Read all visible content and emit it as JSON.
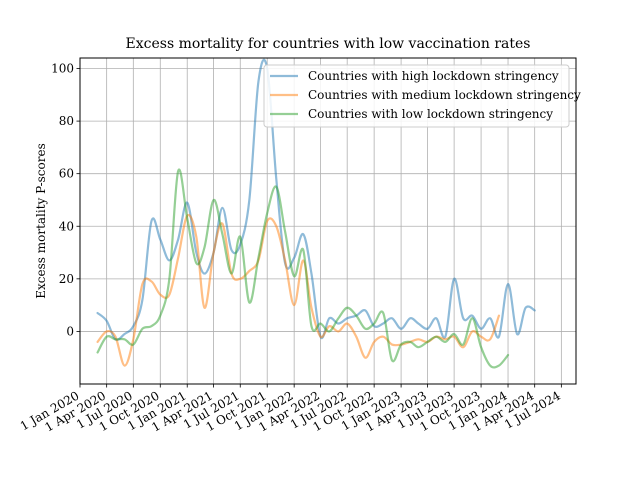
{
  "chart_data": {
    "type": "line",
    "title": "Excess mortality for countries with low vaccination rates",
    "xlabel": "",
    "ylabel": "Excess mortality P-scores",
    "ylim": [
      -20,
      104
    ],
    "xlim": [
      "2020-01-01",
      "2024-08-20"
    ],
    "grid": true,
    "legend_position": "top-right",
    "y_ticks": [
      0,
      20,
      40,
      60,
      80,
      100
    ],
    "x_ticks": [
      {
        "date": "2020-01-01",
        "label": "1 Jan 2020"
      },
      {
        "date": "2020-04-01",
        "label": "1 Apr 2020"
      },
      {
        "date": "2020-07-01",
        "label": "1 Jul 2020"
      },
      {
        "date": "2020-10-01",
        "label": "1 Oct 2020"
      },
      {
        "date": "2021-01-01",
        "label": "1 Jan 2021"
      },
      {
        "date": "2021-04-01",
        "label": "1 Apr 2021"
      },
      {
        "date": "2021-07-01",
        "label": "1 Jul 2021"
      },
      {
        "date": "2021-10-01",
        "label": "1 Oct 2021"
      },
      {
        "date": "2022-01-01",
        "label": "1 Jan 2022"
      },
      {
        "date": "2022-04-01",
        "label": "1 Apr 2022"
      },
      {
        "date": "2022-07-01",
        "label": "1 Jul 2022"
      },
      {
        "date": "2022-10-01",
        "label": "1 Oct 2022"
      },
      {
        "date": "2023-01-01",
        "label": "1 Jan 2023"
      },
      {
        "date": "2023-04-01",
        "label": "1 Apr 2023"
      },
      {
        "date": "2023-07-01",
        "label": "1 Jul 2023"
      },
      {
        "date": "2023-10-01",
        "label": "1 Oct 2023"
      },
      {
        "date": "2024-01-01",
        "label": "1 Jan 2024"
      },
      {
        "date": "2024-04-01",
        "label": "1 Apr 2024"
      },
      {
        "date": "2024-07-01",
        "label": "1 Jul 2024"
      }
    ],
    "series": [
      {
        "name": "Countries with high lockdown stringency",
        "color": "#1f77b4",
        "points": [
          [
            "2020-03-01",
            7
          ],
          [
            "2020-04-01",
            4
          ],
          [
            "2020-05-01",
            -3
          ],
          [
            "2020-06-01",
            -1
          ],
          [
            "2020-07-01",
            2
          ],
          [
            "2020-08-01",
            12
          ],
          [
            "2020-09-01",
            42
          ],
          [
            "2020-10-01",
            35
          ],
          [
            "2020-11-01",
            27
          ],
          [
            "2020-12-01",
            35
          ],
          [
            "2021-01-01",
            49
          ],
          [
            "2021-02-01",
            30
          ],
          [
            "2021-03-01",
            22
          ],
          [
            "2021-04-01",
            30
          ],
          [
            "2021-05-01",
            47
          ],
          [
            "2021-06-01",
            31
          ],
          [
            "2021-07-01",
            33
          ],
          [
            "2021-08-01",
            50
          ],
          [
            "2021-09-01",
            95
          ],
          [
            "2021-10-01",
            100
          ],
          [
            "2021-11-01",
            58
          ],
          [
            "2021-12-01",
            26
          ],
          [
            "2022-01-01",
            28
          ],
          [
            "2022-02-01",
            37
          ],
          [
            "2022-03-01",
            22
          ],
          [
            "2022-04-01",
            -2
          ],
          [
            "2022-05-01",
            5
          ],
          [
            "2022-06-01",
            3
          ],
          [
            "2022-07-01",
            5
          ],
          [
            "2022-08-01",
            6
          ],
          [
            "2022-09-01",
            8
          ],
          [
            "2022-10-01",
            2
          ],
          [
            "2022-11-01",
            3
          ],
          [
            "2022-12-01",
            5
          ],
          [
            "2023-01-01",
            1
          ],
          [
            "2023-02-01",
            5
          ],
          [
            "2023-03-01",
            3
          ],
          [
            "2023-04-01",
            1
          ],
          [
            "2023-05-01",
            5
          ],
          [
            "2023-06-01",
            -2
          ],
          [
            "2023-07-01",
            20
          ],
          [
            "2023-08-01",
            5
          ],
          [
            "2023-09-01",
            6
          ],
          [
            "2023-10-01",
            1
          ],
          [
            "2023-11-01",
            5
          ],
          [
            "2023-12-01",
            -2
          ],
          [
            "2024-01-01",
            18
          ],
          [
            "2024-02-01",
            -1
          ],
          [
            "2024-03-01",
            9
          ],
          [
            "2024-04-01",
            8
          ]
        ]
      },
      {
        "name": "Countries with medium lockdown stringency",
        "color": "#ff7f0e",
        "points": [
          [
            "2020-03-01",
            -4
          ],
          [
            "2020-04-01",
            0
          ],
          [
            "2020-05-01",
            -2
          ],
          [
            "2020-06-01",
            -13
          ],
          [
            "2020-07-01",
            -3
          ],
          [
            "2020-08-01",
            18
          ],
          [
            "2020-09-01",
            19
          ],
          [
            "2020-10-01",
            14
          ],
          [
            "2020-11-01",
            14
          ],
          [
            "2020-12-01",
            28
          ],
          [
            "2021-01-01",
            44
          ],
          [
            "2021-02-01",
            36
          ],
          [
            "2021-03-01",
            9
          ],
          [
            "2021-04-01",
            30
          ],
          [
            "2021-05-01",
            41
          ],
          [
            "2021-06-01",
            22
          ],
          [
            "2021-07-01",
            20
          ],
          [
            "2021-08-01",
            23
          ],
          [
            "2021-09-01",
            27
          ],
          [
            "2021-10-01",
            42
          ],
          [
            "2021-11-01",
            40
          ],
          [
            "2021-12-01",
            27
          ],
          [
            "2022-01-01",
            10
          ],
          [
            "2022-02-01",
            27
          ],
          [
            "2022-03-01",
            9
          ],
          [
            "2022-04-01",
            -2
          ],
          [
            "2022-05-01",
            2
          ],
          [
            "2022-06-01",
            0
          ],
          [
            "2022-07-01",
            3
          ],
          [
            "2022-08-01",
            -2
          ],
          [
            "2022-09-01",
            -10
          ],
          [
            "2022-10-01",
            -4
          ],
          [
            "2022-11-01",
            -2
          ],
          [
            "2022-12-01",
            -5
          ],
          [
            "2023-01-01",
            -5
          ],
          [
            "2023-02-01",
            -4
          ],
          [
            "2023-03-01",
            -3
          ],
          [
            "2023-04-01",
            -4
          ],
          [
            "2023-05-01",
            -2
          ],
          [
            "2023-06-01",
            -3
          ],
          [
            "2023-07-01",
            -2
          ],
          [
            "2023-08-01",
            -6
          ],
          [
            "2023-09-01",
            0
          ],
          [
            "2023-10-01",
            -2
          ],
          [
            "2023-11-01",
            -3
          ],
          [
            "2023-12-01",
            6
          ]
        ]
      },
      {
        "name": "Countries with low lockdown stringency",
        "color": "#2ca02c",
        "points": [
          [
            "2020-03-01",
            -8
          ],
          [
            "2020-04-01",
            -2
          ],
          [
            "2020-05-01",
            -3
          ],
          [
            "2020-06-01",
            -3
          ],
          [
            "2020-07-01",
            -5
          ],
          [
            "2020-08-01",
            1
          ],
          [
            "2020-09-01",
            2
          ],
          [
            "2020-10-01",
            6
          ],
          [
            "2020-11-01",
            20
          ],
          [
            "2020-12-01",
            61
          ],
          [
            "2021-01-01",
            43
          ],
          [
            "2021-02-01",
            26
          ],
          [
            "2021-03-01",
            32
          ],
          [
            "2021-04-01",
            50
          ],
          [
            "2021-05-01",
            37
          ],
          [
            "2021-06-01",
            22
          ],
          [
            "2021-07-01",
            36
          ],
          [
            "2021-08-01",
            11
          ],
          [
            "2021-09-01",
            28
          ],
          [
            "2021-10-01",
            45
          ],
          [
            "2021-11-01",
            55
          ],
          [
            "2021-12-01",
            38
          ],
          [
            "2022-01-01",
            21
          ],
          [
            "2022-02-01",
            31
          ],
          [
            "2022-03-01",
            2
          ],
          [
            "2022-04-01",
            3
          ],
          [
            "2022-05-01",
            0
          ],
          [
            "2022-06-01",
            5
          ],
          [
            "2022-07-01",
            9
          ],
          [
            "2022-08-01",
            6
          ],
          [
            "2022-09-01",
            1
          ],
          [
            "2022-10-01",
            3
          ],
          [
            "2022-11-01",
            7
          ],
          [
            "2022-12-01",
            -11
          ],
          [
            "2023-01-01",
            -5
          ],
          [
            "2023-02-01",
            -4
          ],
          [
            "2023-03-01",
            -6
          ],
          [
            "2023-04-01",
            -4
          ],
          [
            "2023-05-01",
            -2
          ],
          [
            "2023-06-01",
            -4
          ],
          [
            "2023-07-01",
            -1
          ],
          [
            "2023-08-01",
            -5
          ],
          [
            "2023-09-01",
            5
          ],
          [
            "2023-10-01",
            -6
          ],
          [
            "2023-11-01",
            -13
          ],
          [
            "2023-12-01",
            -13
          ],
          [
            "2024-01-01",
            -9
          ]
        ]
      }
    ]
  }
}
